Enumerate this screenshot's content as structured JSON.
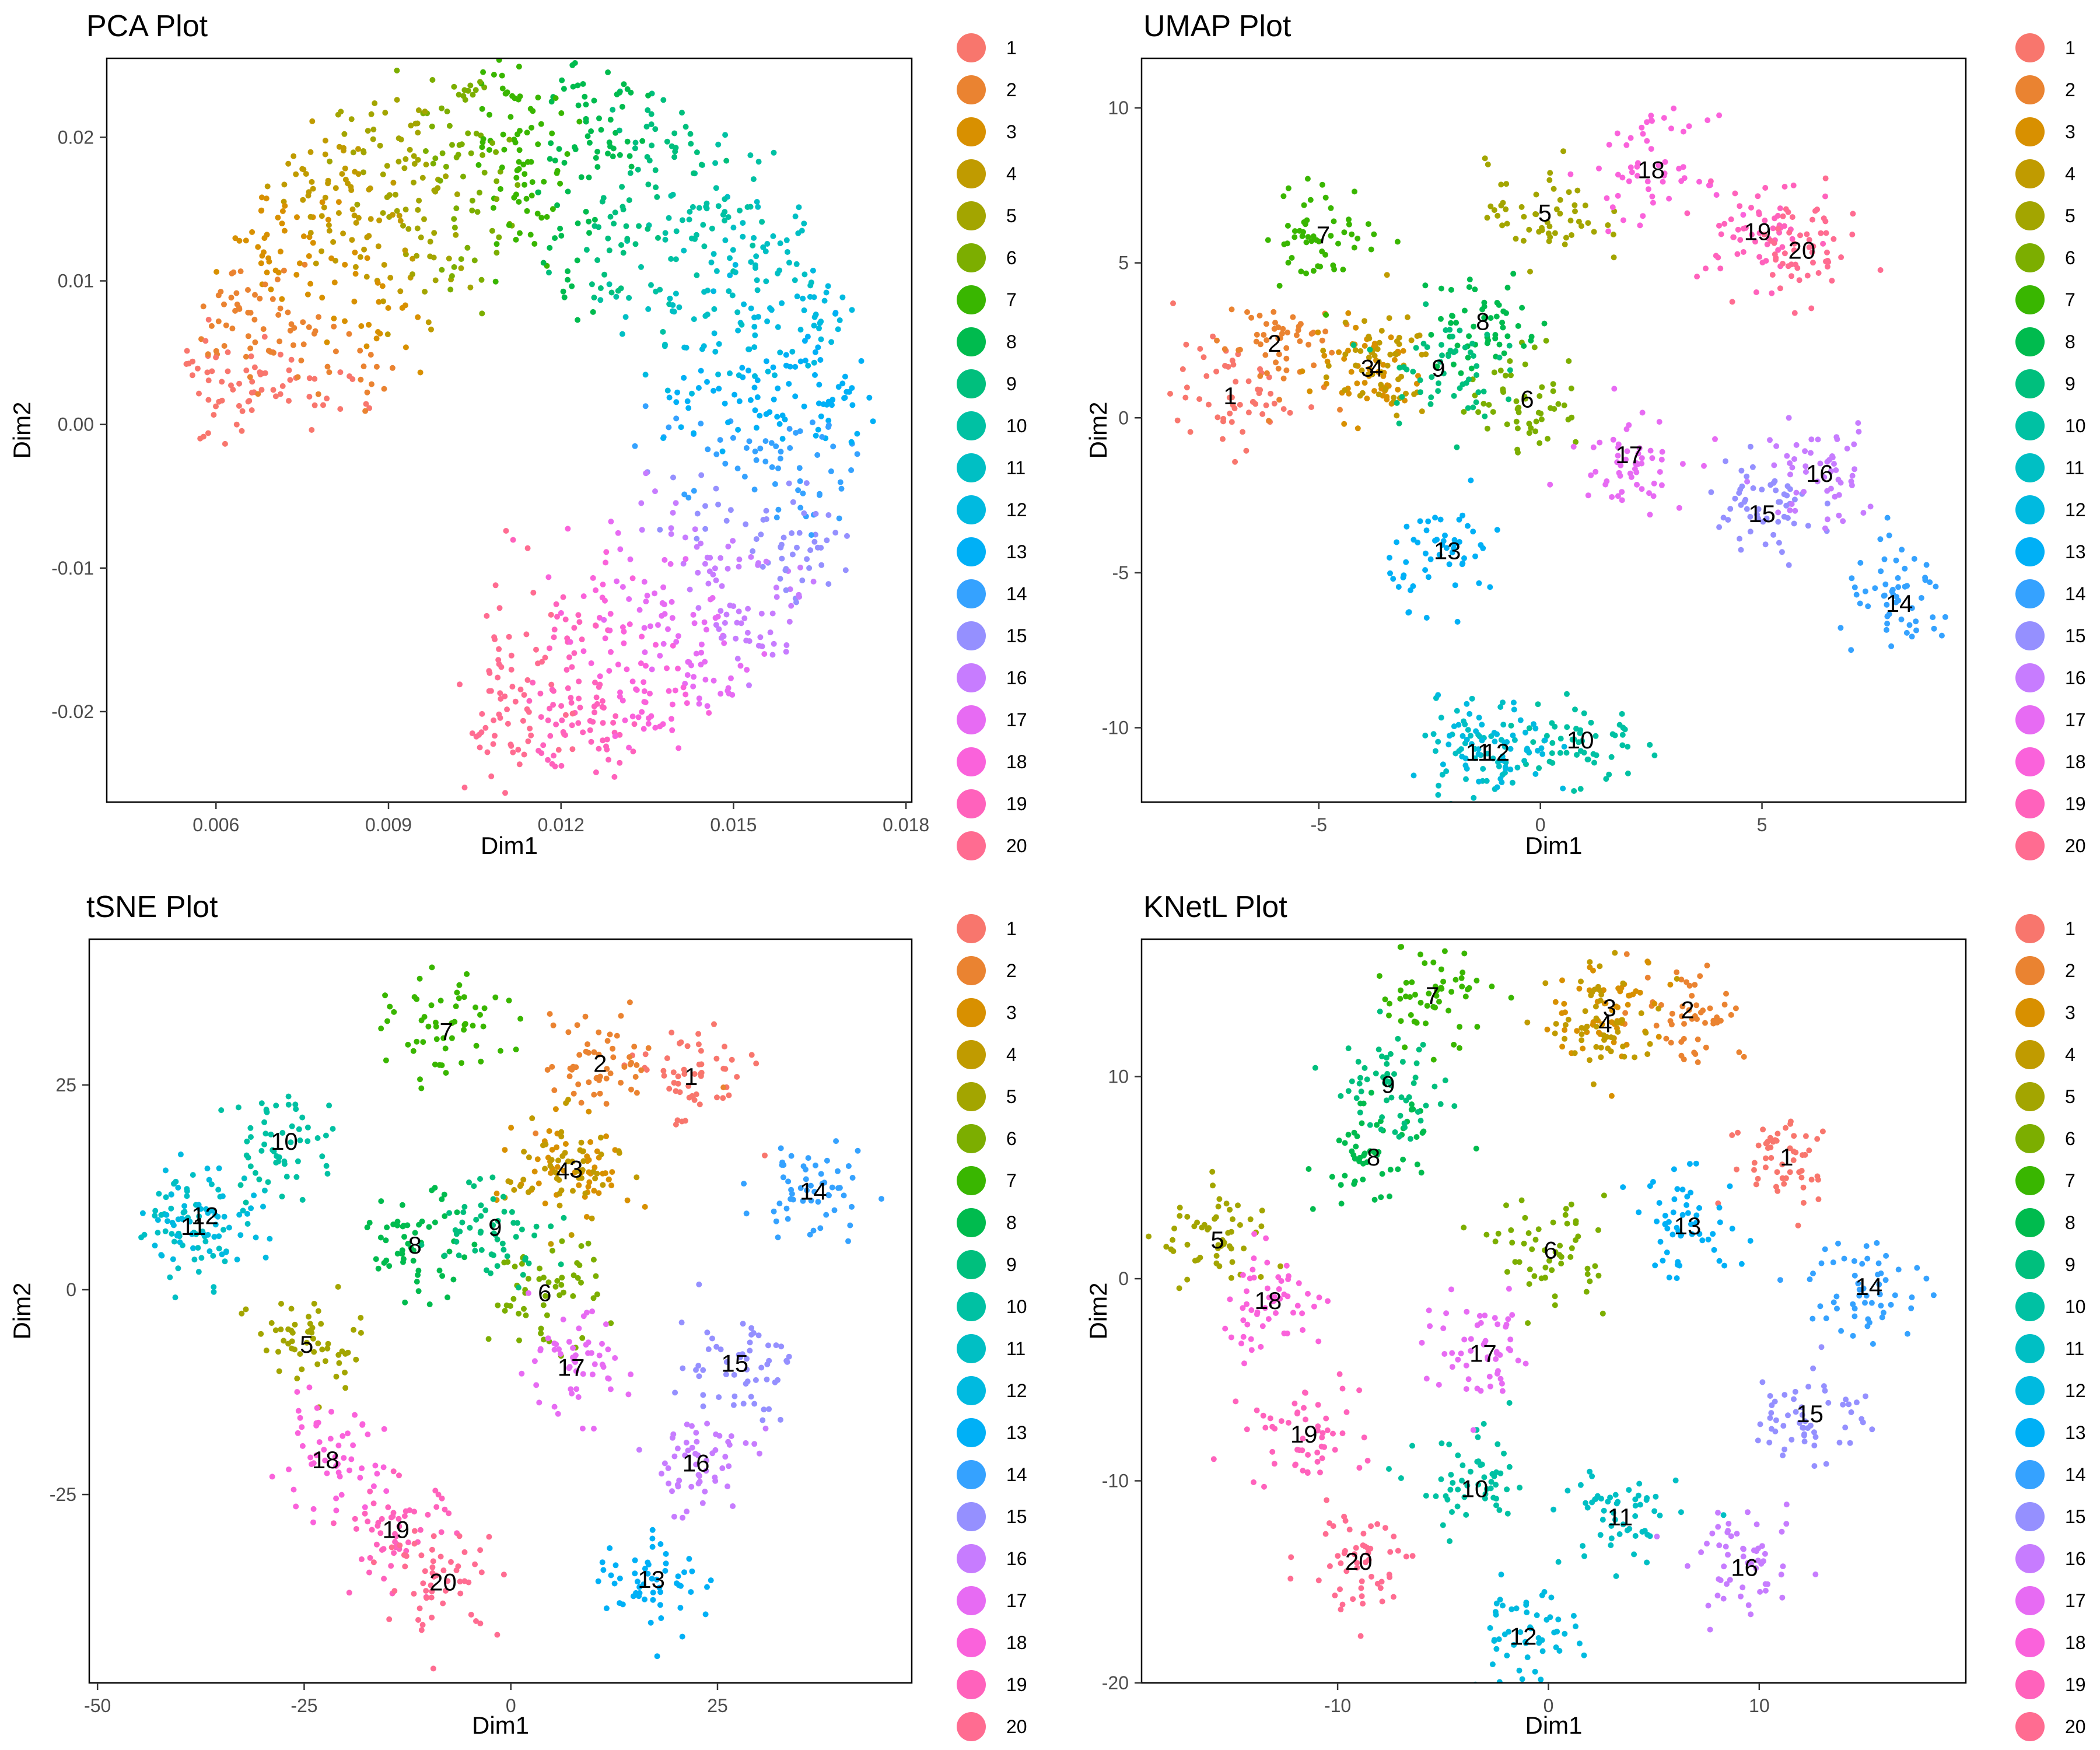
{
  "palette": [
    "#F8766D",
    "#EA8331",
    "#D89000",
    "#C09B00",
    "#A3A500",
    "#7CAE00",
    "#39B600",
    "#00BB4E",
    "#00BF7D",
    "#00C1A3",
    "#00BFC4",
    "#00BAE0",
    "#00B0F6",
    "#35A2FF",
    "#9590FF",
    "#C77CFF",
    "#E76BF3",
    "#FA62DB",
    "#FF62BC",
    "#FF6C91"
  ],
  "legend_labels": [
    "1",
    "2",
    "3",
    "4",
    "5",
    "6",
    "7",
    "8",
    "9",
    "10",
    "11",
    "12",
    "13",
    "14",
    "15",
    "16",
    "17",
    "18",
    "19",
    "20"
  ],
  "chart_data": [
    {
      "type": "scatter",
      "title": "PCA Plot",
      "xlabel": "Dim1",
      "ylabel": "Dim2",
      "xlim": [
        0.0041,
        0.0181
      ],
      "ylim": [
        -0.0263,
        0.0255
      ],
      "xticks": [
        0.006,
        0.009,
        0.012,
        0.015,
        0.018
      ],
      "xtick_labels": [
        "0.006",
        "0.009",
        "0.012",
        "0.015",
        "0.018"
      ],
      "yticks": [
        -0.02,
        -0.01,
        0.0,
        0.01,
        0.02
      ],
      "ytick_labels": [
        "-0.02",
        "-0.01",
        "0.00",
        "0.01",
        "0.02"
      ],
      "legend": "right",
      "cluster_labels": []
    },
    {
      "type": "scatter",
      "title": "UMAP Plot",
      "xlabel": "Dim1",
      "ylabel": "Dim2",
      "xlim": [
        -9.0,
        9.6
      ],
      "ylim": [
        -12.4,
        11.6
      ],
      "xticks": [
        -5,
        0,
        5
      ],
      "xtick_labels": [
        "-5",
        "0",
        "5"
      ],
      "yticks": [
        -10,
        -5,
        0,
        5,
        10
      ],
      "ytick_labels": [
        "-10",
        "-5",
        "0",
        "5",
        "10"
      ],
      "legend": "right",
      "cluster_labels": [
        {
          "label": "1",
          "x": -7.0,
          "y": 0.7
        },
        {
          "label": "2",
          "x": -6.0,
          "y": 2.4
        },
        {
          "label": "3",
          "x": -3.9,
          "y": 1.6
        },
        {
          "label": "4",
          "x": -3.7,
          "y": 1.6
        },
        {
          "label": "5",
          "x": 0.1,
          "y": 6.6
        },
        {
          "label": "6",
          "x": -0.3,
          "y": 0.6
        },
        {
          "label": "7",
          "x": -4.9,
          "y": 5.9
        },
        {
          "label": "8",
          "x": -1.3,
          "y": 3.1
        },
        {
          "label": "9",
          "x": -2.3,
          "y": 1.6
        },
        {
          "label": "10",
          "x": 0.9,
          "y": -10.4
        },
        {
          "label": "11",
          "x": -1.4,
          "y": -10.8
        },
        {
          "label": "12",
          "x": -1.0,
          "y": -10.8
        },
        {
          "label": "13",
          "x": -2.1,
          "y": -4.3
        },
        {
          "label": "14",
          "x": 8.1,
          "y": -6.0
        },
        {
          "label": "15",
          "x": 5.0,
          "y": -3.1
        },
        {
          "label": "16",
          "x": 6.3,
          "y": -1.8
        },
        {
          "label": "17",
          "x": 2.0,
          "y": -1.2
        },
        {
          "label": "18",
          "x": 2.5,
          "y": 8.0
        },
        {
          "label": "19",
          "x": 4.9,
          "y": 6.0
        },
        {
          "label": "20",
          "x": 5.9,
          "y": 5.4
        }
      ]
    },
    {
      "type": "scatter",
      "title": "tSNE Plot",
      "xlabel": "Dim1",
      "ylabel": "Dim2",
      "xlim": [
        -51.0,
        48.5
      ],
      "ylim": [
        -48.0,
        42.8
      ],
      "xticks": [
        -50,
        -25,
        0,
        25
      ],
      "xtick_labels": [
        "-50",
        "-25",
        "0",
        "25"
      ],
      "yticks": [
        -25,
        0,
        25
      ],
      "ytick_labels": [
        "-25",
        "0",
        "25"
      ],
      "legend": "right",
      "cluster_labels": [
        {
          "label": "1",
          "x": 21.8,
          "y": 26.0
        },
        {
          "label": "2",
          "x": 10.8,
          "y": 27.6
        },
        {
          "label": "3",
          "x": 7.9,
          "y": 14.7
        },
        {
          "label": "4",
          "x": 6.3,
          "y": 14.5
        },
        {
          "label": "5",
          "x": -24.7,
          "y": -6.7
        },
        {
          "label": "6",
          "x": 4.1,
          "y": -0.4
        },
        {
          "label": "7",
          "x": -7.8,
          "y": 31.5
        },
        {
          "label": "8",
          "x": -11.6,
          "y": 5.4
        },
        {
          "label": "9",
          "x": -1.9,
          "y": 7.6
        },
        {
          "label": "10",
          "x": -27.4,
          "y": 18.1
        },
        {
          "label": "11",
          "x": -38.4,
          "y": 7.7
        },
        {
          "label": "12",
          "x": -37.0,
          "y": 9.0
        },
        {
          "label": "13",
          "x": 17.0,
          "y": -35.4
        },
        {
          "label": "14",
          "x": 36.6,
          "y": 12.0
        },
        {
          "label": "15",
          "x": 27.1,
          "y": -9.0
        },
        {
          "label": "16",
          "x": 22.4,
          "y": -21.2
        },
        {
          "label": "17",
          "x": 7.3,
          "y": -9.5
        },
        {
          "label": "18",
          "x": -22.4,
          "y": -20.8
        },
        {
          "label": "19",
          "x": -13.9,
          "y": -29.3
        },
        {
          "label": "20",
          "x": -8.2,
          "y": -35.7
        }
      ]
    },
    {
      "type": "scatter",
      "title": "KNetL Plot",
      "xlabel": "Dim1",
      "ylabel": "Dim2",
      "xlim": [
        -19.3,
        19.8
      ],
      "ylim": [
        -20.0,
        16.8
      ],
      "xticks": [
        -10,
        0,
        10
      ],
      "xtick_labels": [
        "-10",
        "0",
        "10"
      ],
      "yticks": [
        -20,
        -10,
        0,
        10
      ],
      "ytick_labels": [
        "-20",
        "-10",
        "0",
        "10"
      ],
      "legend": "right",
      "cluster_labels": [
        {
          "label": "1",
          "x": 11.3,
          "y": 6.0
        },
        {
          "label": "2",
          "x": 6.6,
          "y": 13.3
        },
        {
          "label": "3",
          "x": 2.9,
          "y": 13.4
        },
        {
          "label": "4",
          "x": 2.7,
          "y": 12.6
        },
        {
          "label": "5",
          "x": -15.7,
          "y": 1.9
        },
        {
          "label": "6",
          "x": 0.1,
          "y": 1.4
        },
        {
          "label": "7",
          "x": -5.5,
          "y": 14.0
        },
        {
          "label": "8",
          "x": -8.3,
          "y": 6.0
        },
        {
          "label": "9",
          "x": -7.6,
          "y": 9.6
        },
        {
          "label": "10",
          "x": -3.5,
          "y": -10.4
        },
        {
          "label": "11",
          "x": 3.4,
          "y": -11.8
        },
        {
          "label": "12",
          "x": -1.2,
          "y": -17.7
        },
        {
          "label": "13",
          "x": 6.6,
          "y": 2.6
        },
        {
          "label": "14",
          "x": 15.2,
          "y": -0.4
        },
        {
          "label": "15",
          "x": 12.4,
          "y": -6.7
        },
        {
          "label": "16",
          "x": 9.3,
          "y": -14.3
        },
        {
          "label": "17",
          "x": -3.1,
          "y": -3.7
        },
        {
          "label": "18",
          "x": -13.3,
          "y": -1.1
        },
        {
          "label": "19",
          "x": -11.6,
          "y": -7.7
        },
        {
          "label": "20",
          "x": -9.0,
          "y": -14.0
        }
      ]
    }
  ]
}
